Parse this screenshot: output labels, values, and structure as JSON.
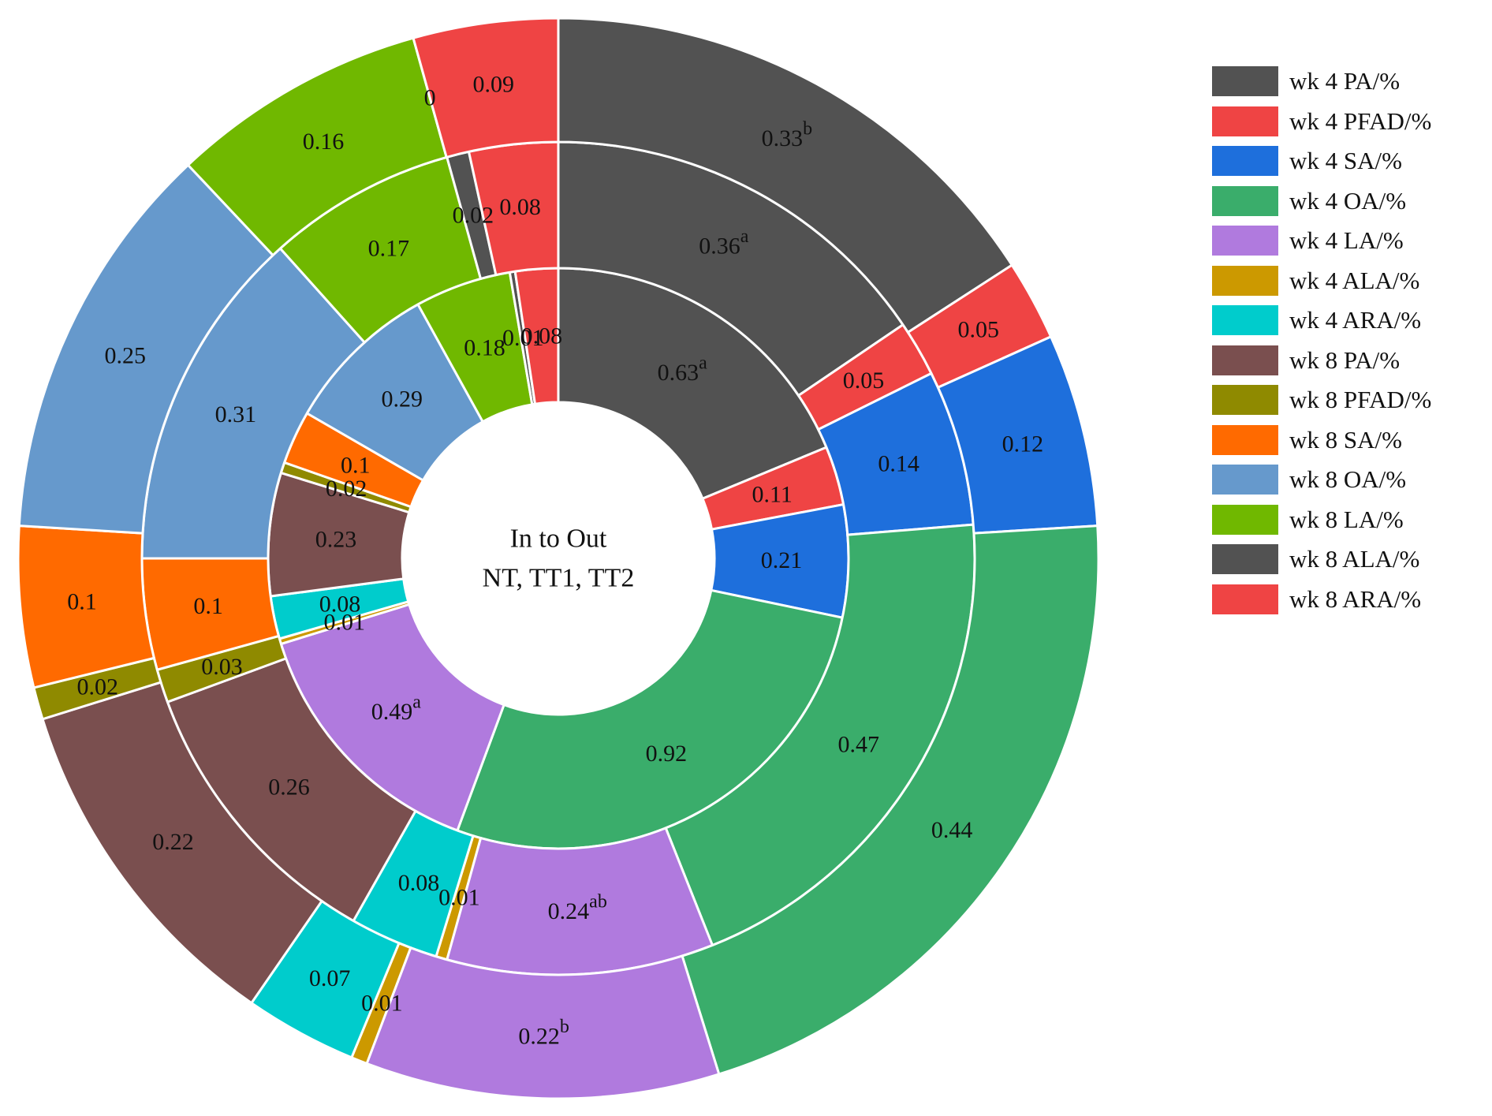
{
  "chart_data": {
    "type": "pie",
    "subtype": "multi-ring donut",
    "center_label": {
      "line1": "In to Out",
      "line2": "NT, TT1, TT2"
    },
    "rings": [
      "NT",
      "TT1",
      "TT2"
    ],
    "legend_position": "right",
    "categories": [
      "wk 4 PA/%",
      "wk 4 PFAD/%",
      "wk 4 SA/%",
      "wk 4 OA/%",
      "wk 4 LA/%",
      "wk 4 ALA/%",
      "wk 4 ARA/%",
      "wk 8 PA/%",
      "wk 8 PFAD/%",
      "wk 8 SA/%",
      "wk 8 OA/%",
      "wk 8 LA/%",
      "wk 8 ALA/%",
      "wk 8 ARA/%"
    ],
    "colors": [
      "#525252",
      "#ef4444",
      "#1e6fdc",
      "#3aad6b",
      "#b07ade",
      "#cc9900",
      "#00cccc",
      "#7a4f4f",
      "#8f8a00",
      "#ff6a00",
      "#6699cc",
      "#70b800",
      "#525252",
      "#ef4444"
    ],
    "series": [
      {
        "name": "NT",
        "values": [
          0.63,
          0.11,
          0.21,
          0.92,
          0.49,
          0.01,
          0.08,
          0.23,
          0.02,
          0.1,
          0.29,
          0.18,
          0.01,
          0.08
        ],
        "labels": [
          "0.63",
          "0.11",
          "0.21",
          "0.92",
          "0.49",
          "0.01",
          "0.08",
          "0.23",
          "0.02",
          "0.1",
          "0.29",
          "0.18",
          "0.01",
          "0.08"
        ],
        "superscripts": [
          "a",
          "",
          "",
          "",
          "a",
          "",
          "",
          "",
          "",
          "",
          "",
          "",
          "",
          ""
        ]
      },
      {
        "name": "TT1",
        "values": [
          0.36,
          0.05,
          0.14,
          0.47,
          0.24,
          0.01,
          0.08,
          0.26,
          0.03,
          0.1,
          0.31,
          0.17,
          0.02,
          0.08
        ],
        "labels": [
          "0.36",
          "0.05",
          "0.14",
          "0.47",
          "0.24",
          "0.01",
          "0.08",
          "0.26",
          "0.03",
          "0.1",
          "0.31",
          "0.17",
          "0.02",
          "0.08"
        ],
        "superscripts": [
          "a",
          "",
          "",
          "",
          "ab",
          "",
          "",
          "",
          "",
          "",
          "",
          "",
          "",
          ""
        ]
      },
      {
        "name": "TT2",
        "values": [
          0.33,
          0.05,
          0.12,
          0.44,
          0.22,
          0.01,
          0.07,
          0.22,
          0.02,
          0.1,
          0.25,
          0.16,
          0,
          0.09
        ],
        "labels": [
          "0.33",
          "0.05",
          "0.12",
          "0.44",
          "0.22",
          "0.01",
          "0.07",
          "0.22",
          "0.02",
          "0.1",
          "0.25",
          "0.16",
          "0",
          "0.09"
        ],
        "superscripts": [
          "b",
          "",
          "",
          "",
          "b",
          "",
          "",
          "",
          "",
          "",
          "",
          "",
          "",
          ""
        ]
      }
    ]
  }
}
